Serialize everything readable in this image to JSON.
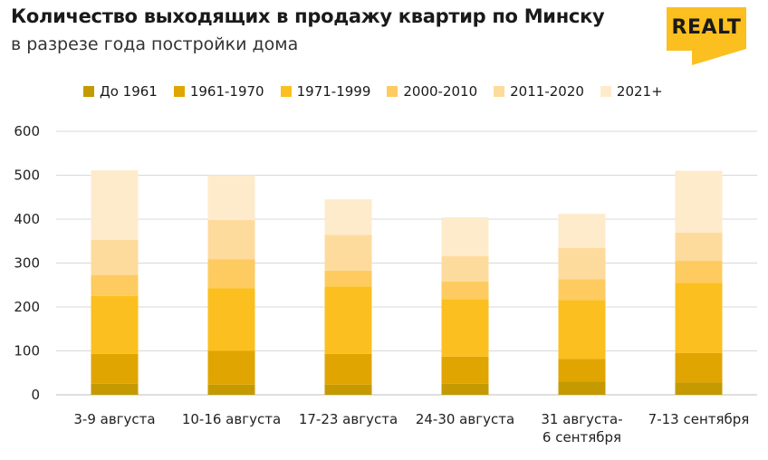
{
  "header": {
    "title": "Количество выходящих в продажу квартир по Минску",
    "subtitle": "в разрезе года постройки дома",
    "logo_text": "REALT"
  },
  "colors": {
    "s1": "#C49A00",
    "s2": "#E0A500",
    "s3": "#FBBF1F",
    "s4": "#FDCB60",
    "s5": "#FDDB9C",
    "s6": "#FEEBCB",
    "logo_bg": "#FBBF1F"
  },
  "chart_data": {
    "type": "bar",
    "stacked": true,
    "title": "Количество выходящих в продажу квартир по Минску",
    "subtitle": "в разрезе года постройки дома",
    "categories": [
      "3-9 августа",
      "10-16 августа",
      "17-23 августа",
      "24-30 августа",
      "31 августа-\n6 сентября",
      "7-13 сентября"
    ],
    "category_lines": [
      [
        "3-9 августа"
      ],
      [
        "10-16 августа"
      ],
      [
        "17-23 августа"
      ],
      [
        "24-30 августа"
      ],
      [
        "31 августа-",
        "6 сентября"
      ],
      [
        "7-13 сентября"
      ]
    ],
    "series": [
      {
        "name": "До 1961",
        "values": [
          25,
          23,
          23,
          25,
          30,
          28
        ]
      },
      {
        "name": "1961-1970",
        "values": [
          68,
          77,
          70,
          62,
          52,
          67
        ]
      },
      {
        "name": "1971-1999",
        "values": [
          132,
          143,
          154,
          131,
          134,
          160
        ]
      },
      {
        "name": "2000-2010",
        "values": [
          48,
          66,
          36,
          40,
          47,
          50
        ]
      },
      {
        "name": "2011-2020",
        "values": [
          80,
          89,
          81,
          58,
          71,
          64
        ]
      },
      {
        "name": "2021+",
        "values": [
          158,
          102,
          81,
          88,
          78,
          141
        ]
      }
    ],
    "ylim": [
      0,
      600
    ],
    "yticks": [
      0,
      100,
      200,
      300,
      400,
      500,
      600
    ],
    "grid": true,
    "legend_position": "top",
    "xlabel": "",
    "ylabel": ""
  }
}
